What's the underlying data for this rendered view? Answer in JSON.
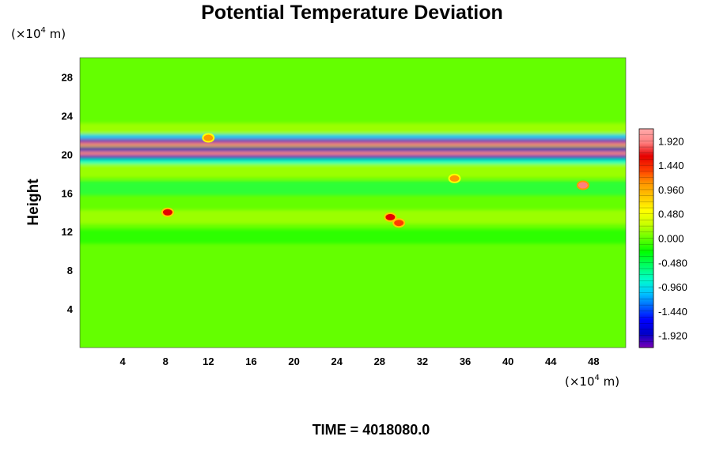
{
  "chart_data": {
    "type": "heatmap",
    "title": "Potential Temperature Deviation",
    "ylabel": "Height",
    "xlabel": "",
    "x_unit": "(×10",
    "x_unit_exp": "4",
    "x_unit_end": " m)",
    "y_unit": "(×10",
    "y_unit_exp": "4",
    "y_unit_end": " m)",
    "xlim": [
      0,
      51
    ],
    "ylim": [
      0,
      30
    ],
    "x_ticks": [
      "4",
      "8",
      "12",
      "16",
      "20",
      "24",
      "28",
      "32",
      "36",
      "40",
      "44",
      "48"
    ],
    "y_ticks": [
      "4",
      "8",
      "12",
      "16",
      "20",
      "24",
      "28"
    ],
    "colorbar": {
      "min": -2.16,
      "max": 2.16,
      "labels": [
        "1.920",
        "1.440",
        "0.960",
        "0.480",
        "0.000",
        "-0.480",
        "-0.960",
        "-1.440",
        "-1.920"
      ]
    },
    "background_value": 0.0,
    "bands": [
      {
        "y_center": 22.5,
        "value": 0.35
      },
      {
        "y_center": 21.8,
        "value": -1.2
      },
      {
        "y_center": 21.4,
        "value": -2.1
      },
      {
        "y_center": 21.0,
        "value": 1.9
      },
      {
        "y_center": 20.5,
        "value": -2.0
      },
      {
        "y_center": 20.1,
        "value": 2.0
      },
      {
        "y_center": 19.7,
        "value": -1.8
      },
      {
        "y_center": 19.2,
        "value": -0.7
      },
      {
        "y_center": 18.3,
        "value": 0.4
      },
      {
        "y_center": 16.5,
        "value": -0.45
      },
      {
        "y_center": 13.5,
        "value": 0.3
      },
      {
        "y_center": 11.5,
        "value": -0.3
      }
    ],
    "hot_spots": [
      {
        "x": 8.2,
        "y": 14.0,
        "value": 1.7
      },
      {
        "x": 29.0,
        "y": 13.5,
        "value": 1.6
      },
      {
        "x": 29.8,
        "y": 12.9,
        "value": 1.4
      },
      {
        "x": 35.0,
        "y": 17.5,
        "value": 1.2
      },
      {
        "x": 47.0,
        "y": 16.8,
        "value": 2.0
      },
      {
        "x": 12.0,
        "y": 21.7,
        "value": 1.0
      }
    ]
  },
  "footer": {
    "time_label": "TIME = 4018080.0"
  },
  "colors": {
    "background": "#ffffff",
    "field_base": "#00ff00",
    "colorbar_stops": [
      "#7a00b4",
      "#0000c8",
      "#0000ff",
      "#0064ff",
      "#00c8ff",
      "#00ffc8",
      "#00ff64",
      "#00ff00",
      "#64ff00",
      "#c8ff00",
      "#ffff00",
      "#ffc800",
      "#ff9600",
      "#ff3c00",
      "#e60000",
      "#ff8080",
      "#ffaaaa"
    ]
  }
}
